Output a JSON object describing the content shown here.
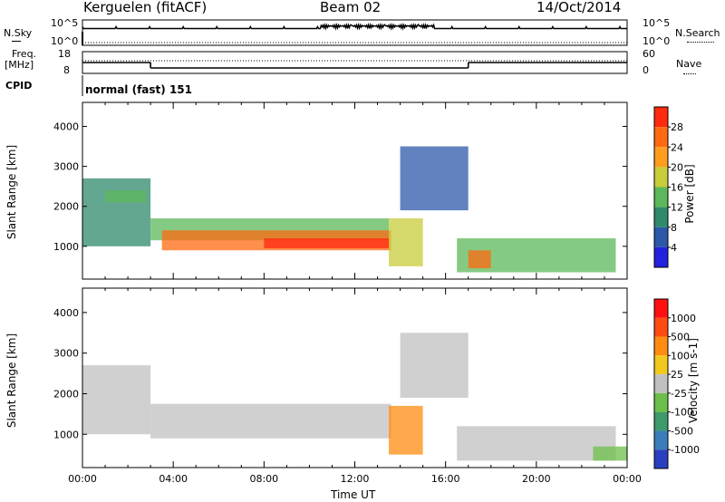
{
  "header": {
    "station": "Kerguelen (fitACF)",
    "beam": "Beam 02",
    "date": "14/Oct/2014"
  },
  "sky_panel": {
    "left_label": "N.Sky",
    "right_label": "N.Search",
    "left_ticks": [
      "10^5",
      "10^0"
    ],
    "right_ticks": [
      "10^5",
      "10^0"
    ]
  },
  "freq_panel": {
    "left_label_line1": "Freq.",
    "left_label_line2": "[MHz]",
    "right_label": "Nave",
    "left_ticks": [
      "18",
      "8"
    ],
    "right_ticks": [
      "60",
      "0"
    ],
    "freq_steps": [
      {
        "t_start": 0,
        "t_end": 3,
        "freq_mhz": 13
      },
      {
        "t_start": 3,
        "t_end": 17,
        "freq_mhz": 10.5
      },
      {
        "t_start": 17,
        "t_end": 24,
        "freq_mhz": 13
      }
    ]
  },
  "cpid": {
    "label": "CPID",
    "value": "normal (fast) 151"
  },
  "chart_data": [
    {
      "type": "heatmap",
      "name": "power",
      "ylabel": "Slant Range [km]",
      "xlabel": "Time UT",
      "x_ticks": [
        "00:00",
        "04:00",
        "08:00",
        "12:00",
        "16:00",
        "20:00",
        "00:00"
      ],
      "xlim_hours": [
        0,
        24
      ],
      "y_ticks": [
        "1000",
        "2000",
        "3000",
        "4000"
      ],
      "ylim_km": [
        180,
        4600
      ],
      "colorbar_label": "Power [dB]",
      "colorbar_ticks": [
        "4",
        "8",
        "12",
        "16",
        "20",
        "24",
        "28"
      ],
      "colorbar_colors": [
        "#2222dd",
        "#2c58a8",
        "#2f8a6c",
        "#5cb85a",
        "#c8cc3a",
        "#ff9d1e",
        "#ff6a10",
        "#ff2a10"
      ],
      "echo_regions": [
        {
          "t": [
            0,
            3
          ],
          "r": [
            1000,
            2700
          ],
          "level": 2
        },
        {
          "t": [
            1,
            2.8
          ],
          "r": [
            2100,
            2400
          ],
          "level": 3
        },
        {
          "t": [
            3,
            13.5
          ],
          "r": [
            1150,
            1700
          ],
          "level": 3
        },
        {
          "t": [
            3.5,
            13.6
          ],
          "r": [
            900,
            1400
          ],
          "level": 6
        },
        {
          "t": [
            8,
            13.5
          ],
          "r": [
            950,
            1200
          ],
          "level": 7
        },
        {
          "t": [
            13.5,
            15
          ],
          "r": [
            500,
            1700
          ],
          "level": 4
        },
        {
          "t": [
            14,
            17
          ],
          "r": [
            1900,
            3500
          ],
          "level": 1
        },
        {
          "t": [
            16.5,
            23.5
          ],
          "r": [
            350,
            1200
          ],
          "level": 3
        },
        {
          "t": [
            17,
            18
          ],
          "r": [
            450,
            900
          ],
          "level": 6
        }
      ]
    },
    {
      "type": "heatmap",
      "name": "velocity",
      "ylabel": "Slant Range [km]",
      "xlabel": "Time UT",
      "x_ticks": [
        "00:00",
        "04:00",
        "08:00",
        "12:00",
        "16:00",
        "20:00",
        "00:00"
      ],
      "xlim_hours": [
        0,
        24
      ],
      "y_ticks": [
        "1000",
        "2000",
        "3000",
        "4000"
      ],
      "ylim_km": [
        180,
        4600
      ],
      "colorbar_label": "Velocity [m s-1]",
      "colorbar_ticks": [
        "1000",
        "500",
        "100",
        "25",
        "-25",
        "-100",
        "-500",
        "-1000"
      ],
      "colorbar_colors": [
        "#2a3fbf",
        "#3b7dbb",
        "#3e9a6a",
        "#6cc04a",
        "#c0c0c0",
        "#f2c81e",
        "#ff8c10",
        "#ff4a10",
        "#ff1010"
      ],
      "echo_regions": [
        {
          "t": [
            0,
            3
          ],
          "r": [
            1000,
            2700
          ],
          "level": 4
        },
        {
          "t": [
            3,
            13.6
          ],
          "r": [
            900,
            1750
          ],
          "level": 4
        },
        {
          "t": [
            13.5,
            15
          ],
          "r": [
            500,
            1700
          ],
          "level": 6
        },
        {
          "t": [
            14,
            17
          ],
          "r": [
            1900,
            3500
          ],
          "level": 4
        },
        {
          "t": [
            16.5,
            23.5
          ],
          "r": [
            350,
            1200
          ],
          "level": 4
        },
        {
          "t": [
            22.5,
            24
          ],
          "r": [
            350,
            700
          ],
          "level": 3
        }
      ]
    }
  ]
}
